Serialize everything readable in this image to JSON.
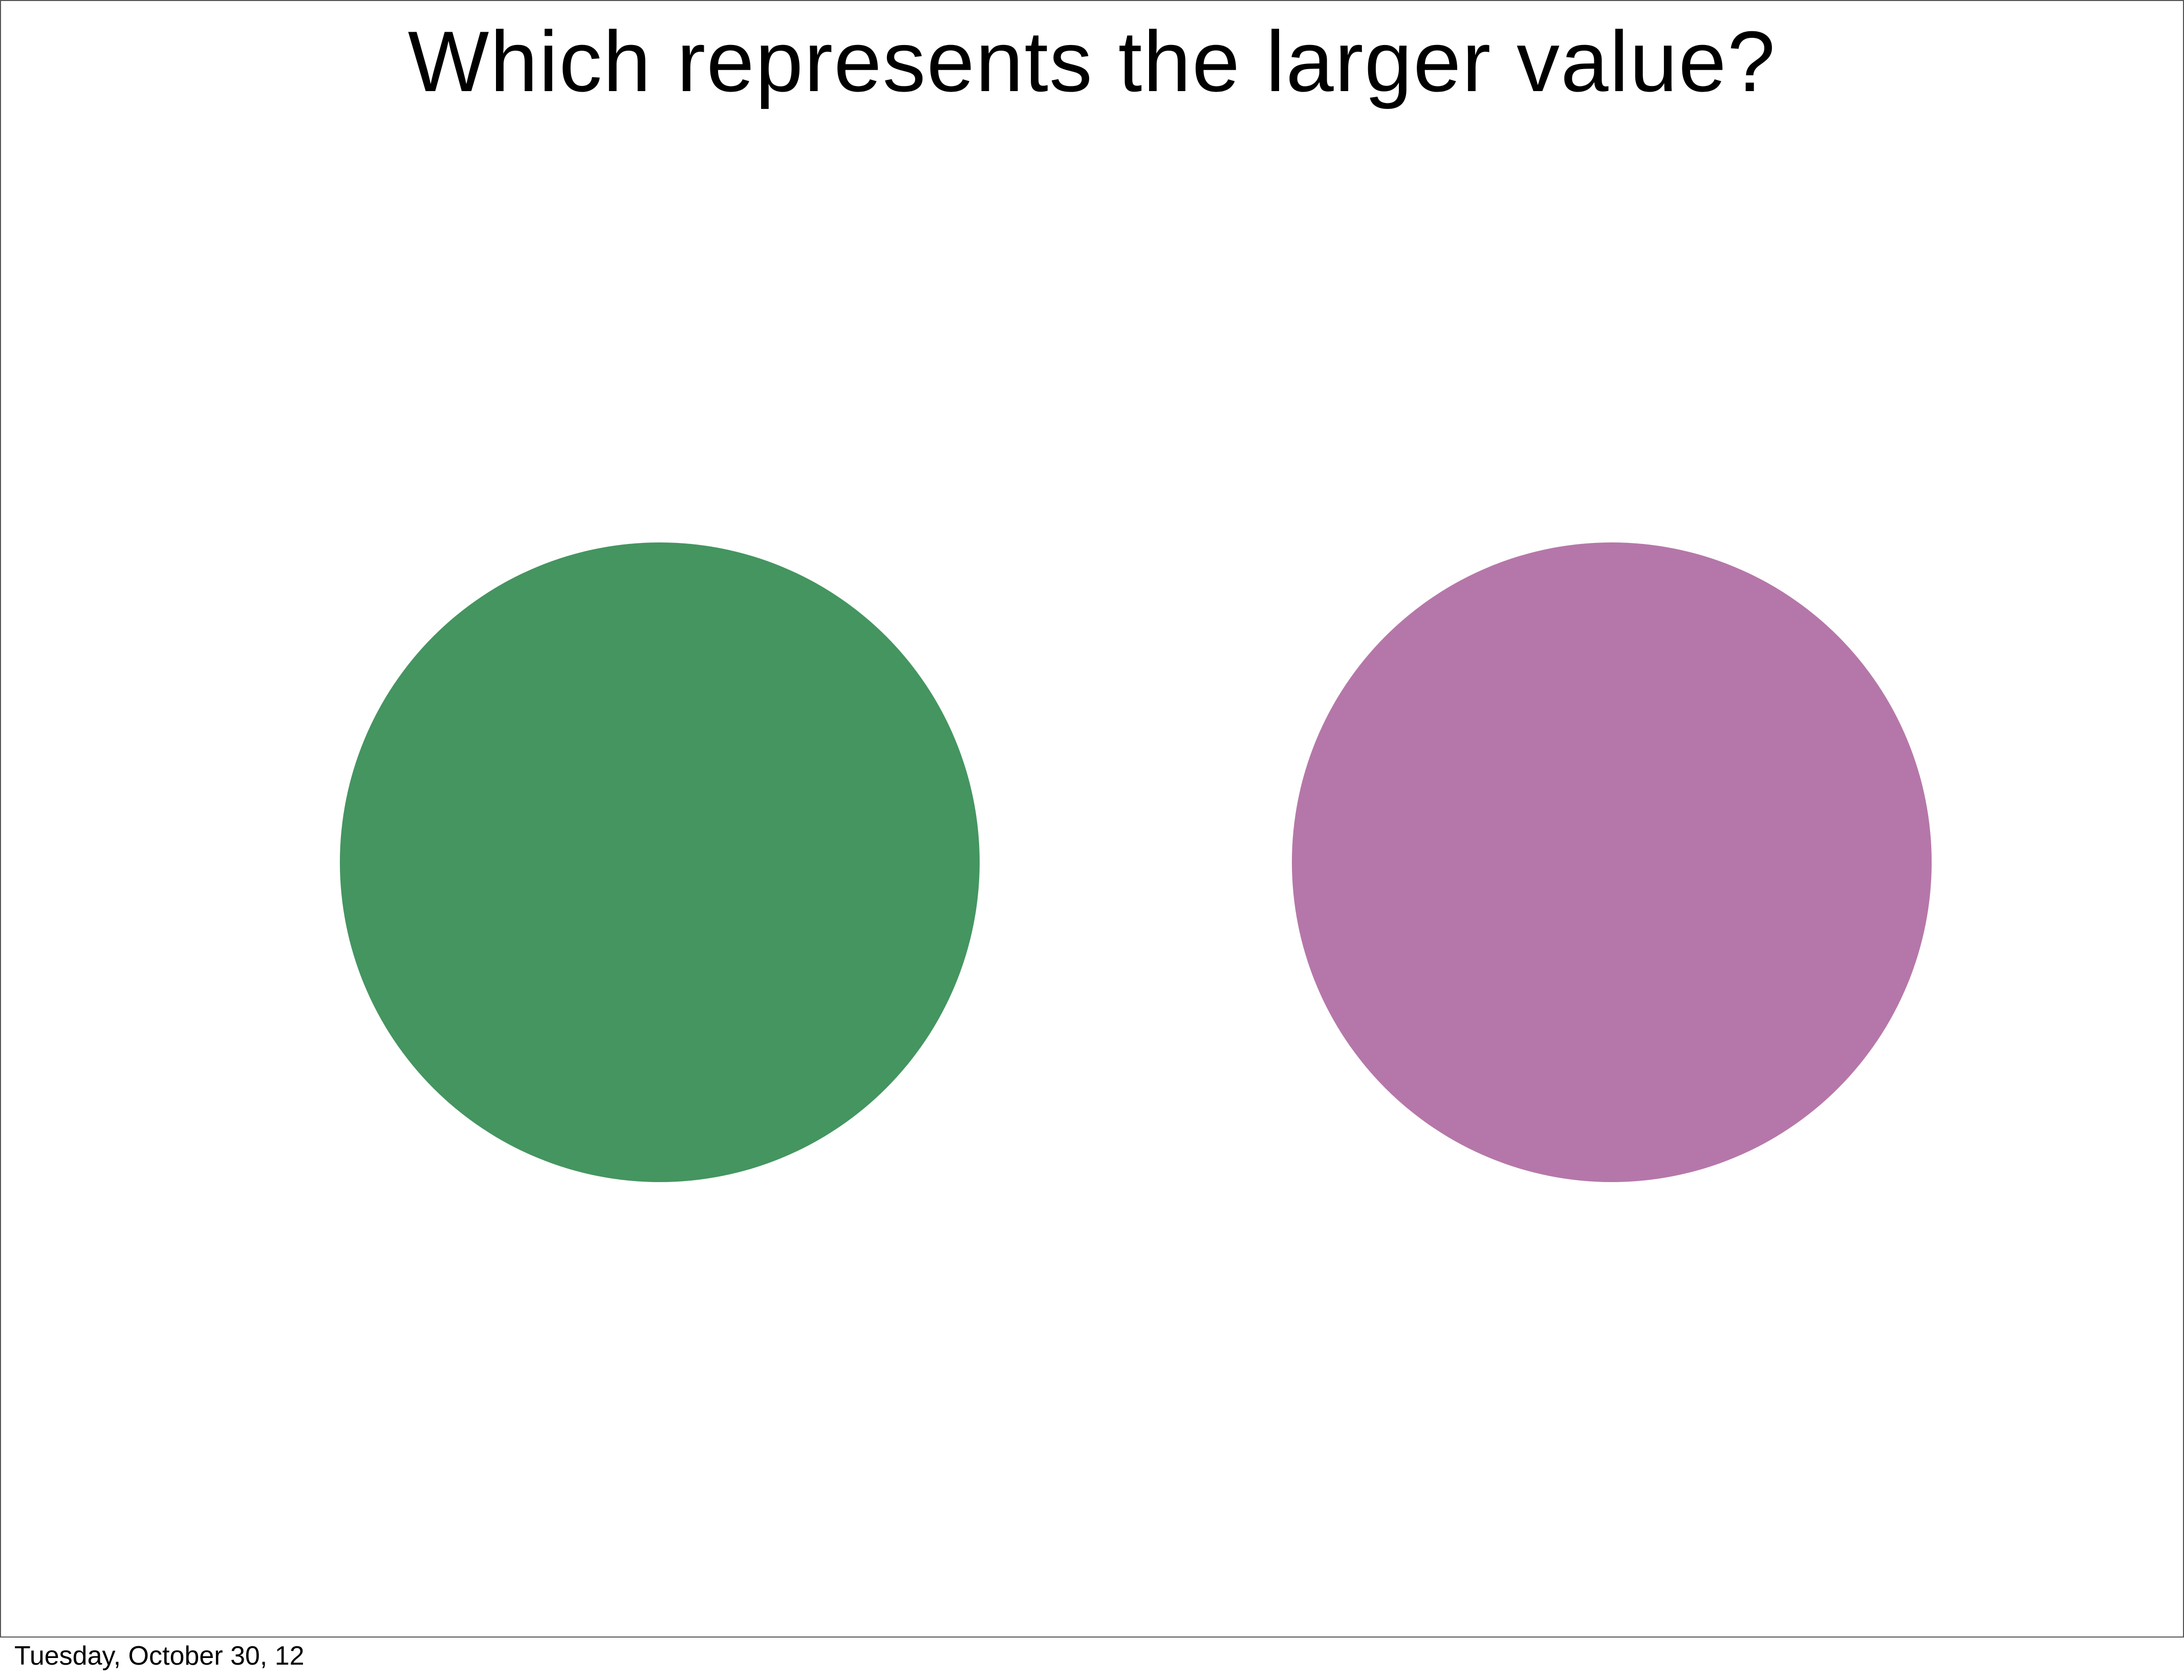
{
  "slide": {
    "title": "Which represents the larger value?",
    "footer_date": "Tuesday, October 30, 12"
  },
  "circles": [
    {
      "name": "left-circle",
      "color": "#449560"
    },
    {
      "name": "right-circle",
      "color": "#b577a9"
    }
  ]
}
